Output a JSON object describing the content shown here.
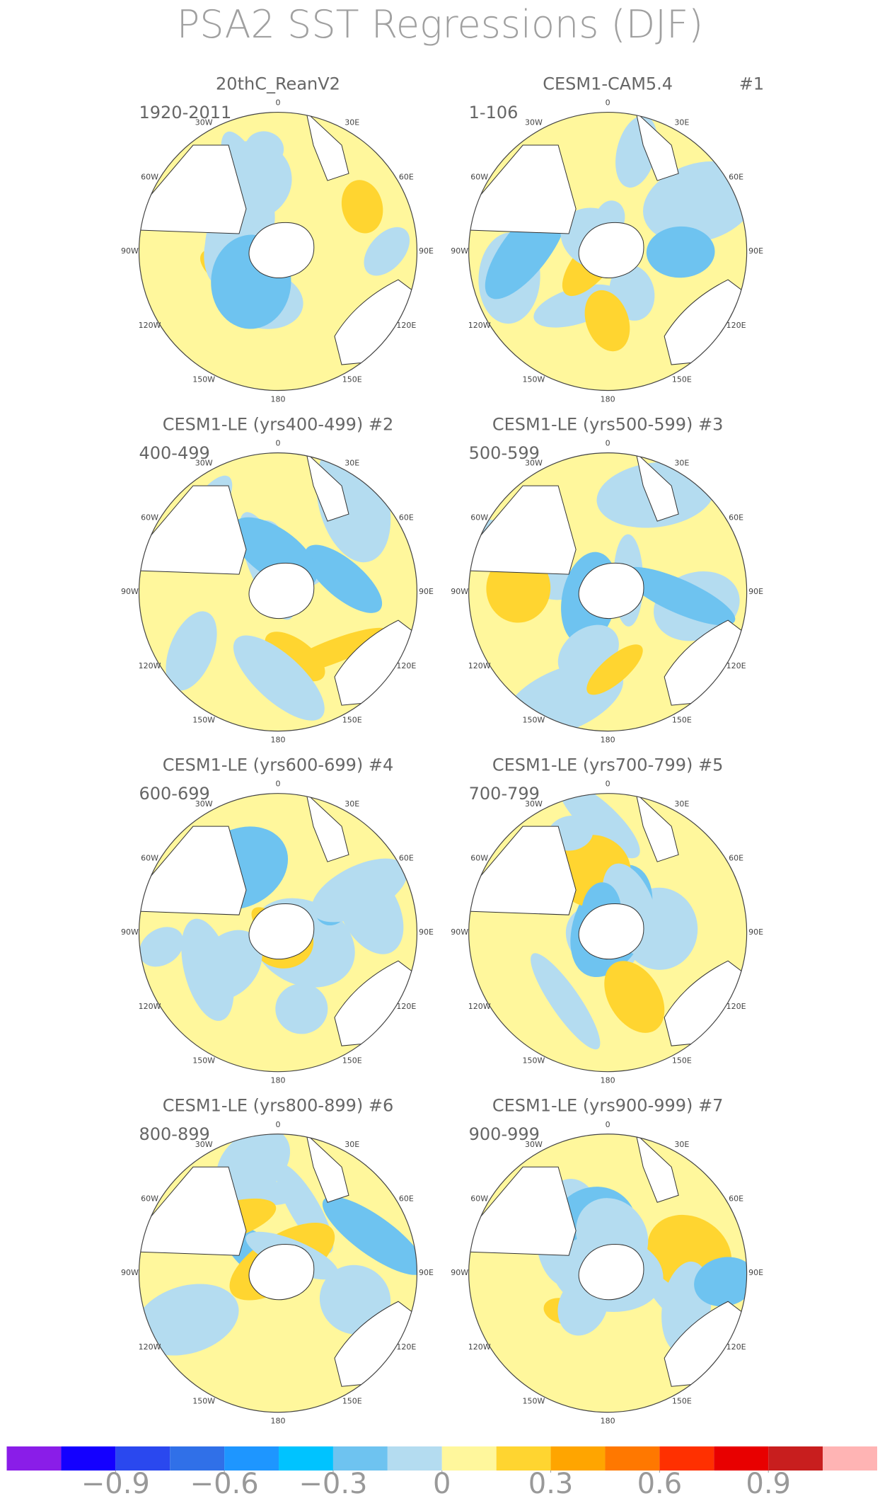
{
  "title": "PSA2 SST Regressions (DJF)",
  "lon_labels": [
    "0",
    "30E",
    "60E",
    "90E",
    "120E",
    "150E",
    "180",
    "150W",
    "120W",
    "90W",
    "60W",
    "30W"
  ],
  "panels": [
    {
      "title": "20thC_ReanV2",
      "period": "1920-2011"
    },
    {
      "title": "CESM1-CAM5.4",
      "number": "#1",
      "period": "1-106"
    },
    {
      "title": "CESM1-LE (yrs400-499) #2",
      "period": "400-499"
    },
    {
      "title": "CESM1-LE (yrs500-599) #3",
      "period": "500-599"
    },
    {
      "title": "CESM1-LE (yrs600-699) #4",
      "period": "600-699"
    },
    {
      "title": "CESM1-LE (yrs700-799) #5",
      "period": "700-799"
    },
    {
      "title": "CESM1-LE (yrs800-899) #6",
      "period": "800-899"
    },
    {
      "title": "CESM1-LE (yrs900-999) #7",
      "period": "900-999"
    }
  ],
  "colorbar": {
    "colors": [
      "#8a1de8",
      "#1400ff",
      "#2a48ef",
      "#3070e8",
      "#1e96ff",
      "#00c3ff",
      "#6ec3f0",
      "#b4dcf0",
      "#fff79c",
      "#ffd530",
      "#ffa500",
      "#ff7800",
      "#ff3000",
      "#e80000",
      "#c81e1e",
      "#ffb4b4"
    ],
    "levels": [
      -1.05,
      -0.9,
      -0.75,
      -0.6,
      -0.45,
      -0.3,
      -0.15,
      0,
      0.15,
      0.3,
      0.45,
      0.6,
      0.75,
      0.9,
      1.05
    ],
    "ticks": [
      {
        "value": -0.9,
        "label": "−0.9"
      },
      {
        "value": -0.6,
        "label": "−0.6"
      },
      {
        "value": -0.3,
        "label": "−0.3"
      },
      0,
      0.3,
      0.6,
      0.9
    ]
  }
}
